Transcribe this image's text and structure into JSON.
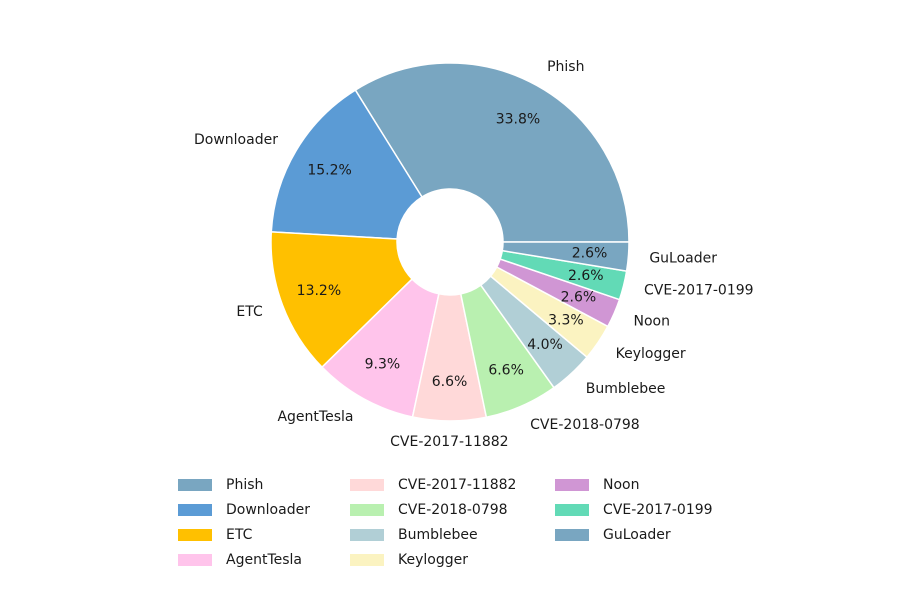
{
  "chart_data": {
    "type": "pie",
    "donut": true,
    "start_angle_deg": 0,
    "direction": "counterclockwise",
    "title": "",
    "legend_placement": "bottom",
    "legend_columns": 3,
    "slices": [
      {
        "label": "Phish",
        "value": 33.8,
        "pct_label": "33.8%",
        "color": "#79A6C1"
      },
      {
        "label": "Downloader",
        "value": 15.2,
        "pct_label": "15.2%",
        "color": "#5B9BD5"
      },
      {
        "label": "ETC",
        "value": 13.2,
        "pct_label": "13.2%",
        "color": "#FFC000"
      },
      {
        "label": "AgentTesla",
        "value": 9.3,
        "pct_label": "9.3%",
        "color": "#FFC4EB"
      },
      {
        "label": "CVE-2017-11882",
        "value": 6.6,
        "pct_label": "6.6%",
        "color": "#FFD9D9"
      },
      {
        "label": "CVE-2018-0798",
        "value": 6.6,
        "pct_label": "6.6%",
        "color": "#B9F0B0"
      },
      {
        "label": "Bumblebee",
        "value": 4.0,
        "pct_label": "4.0%",
        "color": "#B1CFD6"
      },
      {
        "label": "Keylogger",
        "value": 3.3,
        "pct_label": "3.3%",
        "color": "#FBF3C1"
      },
      {
        "label": "Noon",
        "value": 2.6,
        "pct_label": "2.6%",
        "color": "#D096D4"
      },
      {
        "label": "CVE-2017-0199",
        "value": 2.6,
        "pct_label": "2.6%",
        "color": "#62DAB6"
      },
      {
        "label": "GuLoader",
        "value": 2.6,
        "pct_label": "2.6%",
        "color": "#79A6C1"
      }
    ]
  }
}
